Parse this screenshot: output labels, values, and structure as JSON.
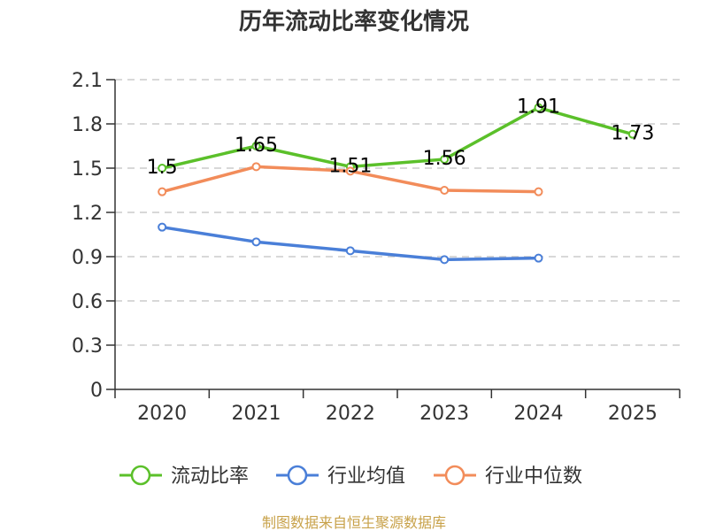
{
  "chart_data": {
    "type": "line",
    "title": "历年流动比率变化情况",
    "categories": [
      "2020",
      "2021",
      "2022",
      "2023",
      "2024",
      "2025"
    ],
    "ylim": [
      0,
      2.1
    ],
    "yticks": [
      "0",
      "0.3",
      "0.6",
      "0.9",
      "1.2",
      "1.5",
      "1.8",
      "2.1"
    ],
    "grid": true,
    "legend_position": "bottom",
    "series": [
      {
        "name": "流动比率",
        "color": "#5bc02a",
        "values": [
          1.5,
          1.65,
          1.51,
          1.56,
          1.91,
          1.73
        ],
        "labels": [
          "1.5",
          "1.65",
          "1.51",
          "1.56",
          "1.91",
          "1.73"
        ]
      },
      {
        "name": "行业均值",
        "color": "#4a7fd8",
        "values": [
          1.1,
          1.0,
          0.94,
          0.88,
          0.89,
          null
        ]
      },
      {
        "name": "行业中位数",
        "color": "#f28c5a",
        "values": [
          1.34,
          1.51,
          1.48,
          1.35,
          1.34,
          null
        ]
      }
    ],
    "source": "制图数据来自恒生聚源数据库"
  }
}
